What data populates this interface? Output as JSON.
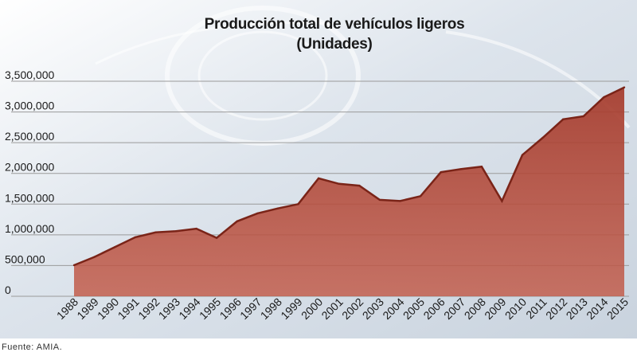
{
  "chart_data": {
    "type": "area",
    "title": "Producción total de vehículos ligeros",
    "subtitle": "(Unidades)",
    "xlabel": "",
    "ylabel": "",
    "x": [
      "1988",
      "1989",
      "1990",
      "1991",
      "1992",
      "1993",
      "1994",
      "1995",
      "1996",
      "1997",
      "1998",
      "1999",
      "2000",
      "2001",
      "2002",
      "2003",
      "2004",
      "2005",
      "2006",
      "2007",
      "2008",
      "2009",
      "2010",
      "2011",
      "2012",
      "2013",
      "2014",
      "2015"
    ],
    "series": [
      {
        "values": [
          505000,
          640000,
          800000,
          960000,
          1040000,
          1060000,
          1100000,
          950000,
          1220000,
          1350000,
          1430000,
          1500000,
          1920000,
          1830000,
          1800000,
          1570000,
          1550000,
          1630000,
          2020000,
          2070000,
          2110000,
          1550000,
          2300000,
          2580000,
          2880000,
          2930000,
          3240000,
          3400000
        ]
      }
    ],
    "yticks": [
      "0",
      "500,000",
      "1,000,000",
      "1,500,000",
      "2,000,000",
      "2,500,000",
      "3,000,000",
      "3,500,000"
    ],
    "ylim": [
      0,
      3500000
    ],
    "grid": true,
    "legend": "none",
    "colors": {
      "fill": "#a83a2c",
      "line": "#7a2418",
      "grid": "#9a9a9a",
      "background": "#dfe6ee"
    }
  },
  "source": "Fuente: AMIA."
}
